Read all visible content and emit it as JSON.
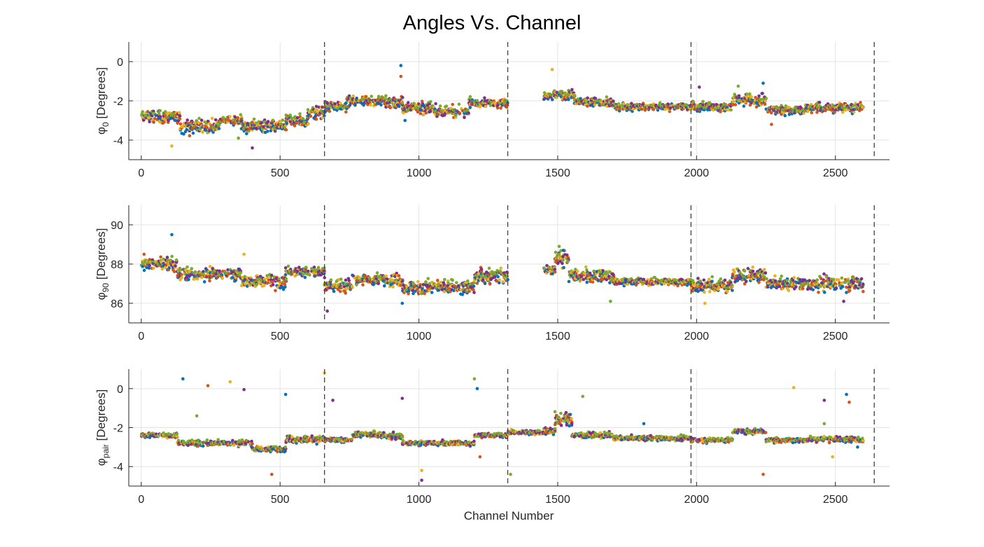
{
  "chart_data": {
    "type": "scatter",
    "title": "Angles Vs. Channel",
    "xlabel": "Channel Number",
    "xlim": [
      -45,
      2695
    ],
    "xticks": [
      0,
      500,
      1000,
      1500,
      2000,
      2500
    ],
    "xtick_labels": [
      "0",
      "500",
      "1000",
      "1500",
      "2000",
      "2500"
    ],
    "grid": true,
    "legend": "none",
    "series_colors": [
      "#0072BD",
      "#D95319",
      "#EDB120",
      "#7E2F8E",
      "#77AC30"
    ],
    "boundary_channels": [
      660,
      1320,
      1980,
      2640
    ],
    "boundary_style": "dashed",
    "gap_channels": [
      1330,
      1450
    ],
    "subplots": [
      {
        "ylabel": {
          "symbol": "φ",
          "subscript": "0",
          "units": "[Degrees]"
        },
        "ylim": [
          -5,
          1
        ],
        "yticks": [
          -4,
          -2,
          0
        ],
        "ytick_labels": [
          "-4",
          "-2",
          "0"
        ],
        "segments": [
          [
            0,
            140,
            -2.8,
            0.25
          ],
          [
            140,
            280,
            -3.3,
            0.3
          ],
          [
            280,
            360,
            -3.0,
            0.2
          ],
          [
            360,
            520,
            -3.3,
            0.25
          ],
          [
            520,
            600,
            -3.0,
            0.25
          ],
          [
            600,
            660,
            -2.6,
            0.3
          ],
          [
            660,
            740,
            -2.25,
            0.2
          ],
          [
            740,
            880,
            -2.0,
            0.2
          ],
          [
            880,
            940,
            -2.1,
            0.25
          ],
          [
            940,
            1060,
            -2.35,
            0.25
          ],
          [
            1060,
            1180,
            -2.55,
            0.25
          ],
          [
            1180,
            1320,
            -2.1,
            0.2
          ],
          [
            1450,
            1560,
            -1.7,
            0.2
          ],
          [
            1560,
            1700,
            -2.1,
            0.2
          ],
          [
            1700,
            1980,
            -2.3,
            0.15
          ],
          [
            1980,
            2130,
            -2.3,
            0.2
          ],
          [
            2130,
            2250,
            -1.95,
            0.25
          ],
          [
            2250,
            2400,
            -2.45,
            0.2
          ],
          [
            2400,
            2600,
            -2.35,
            0.2
          ]
        ],
        "outliers": [
          [
            935,
            -0.2
          ],
          [
            935,
            -0.75
          ],
          [
            1480,
            -0.4
          ],
          [
            2010,
            -1.3
          ],
          [
            2150,
            -1.25
          ],
          [
            2240,
            -1.1
          ],
          [
            2270,
            -3.2
          ],
          [
            110,
            -4.3
          ],
          [
            400,
            -4.4
          ],
          [
            350,
            -3.9
          ],
          [
            950,
            -3.0
          ]
        ]
      },
      {
        "ylabel": {
          "symbol": "φ",
          "subscript": "90",
          "units": "[Degrees]"
        },
        "ylim": [
          85,
          91
        ],
        "yticks": [
          86,
          88,
          90
        ],
        "ytick_labels": [
          "86",
          "88",
          "90"
        ],
        "segments": [
          [
            0,
            130,
            88.0,
            0.25
          ],
          [
            130,
            360,
            87.5,
            0.25
          ],
          [
            360,
            520,
            87.1,
            0.3
          ],
          [
            520,
            660,
            87.6,
            0.2
          ],
          [
            660,
            760,
            86.9,
            0.3
          ],
          [
            760,
            880,
            87.2,
            0.25
          ],
          [
            880,
            940,
            87.2,
            0.3
          ],
          [
            940,
            1200,
            86.8,
            0.3
          ],
          [
            1200,
            1320,
            87.4,
            0.3
          ],
          [
            1450,
            1490,
            87.7,
            0.2
          ],
          [
            1490,
            1540,
            88.3,
            0.35
          ],
          [
            1540,
            1700,
            87.4,
            0.3
          ],
          [
            1700,
            1980,
            87.1,
            0.15
          ],
          [
            1980,
            2130,
            86.9,
            0.3
          ],
          [
            2130,
            2250,
            87.4,
            0.3
          ],
          [
            2250,
            2400,
            87.0,
            0.25
          ],
          [
            2400,
            2600,
            87.0,
            0.3
          ]
        ],
        "outliers": [
          [
            110,
            89.5
          ],
          [
            10,
            88.5
          ],
          [
            370,
            88.5
          ],
          [
            670,
            85.6
          ],
          [
            1505,
            88.9
          ],
          [
            1520,
            88.7
          ],
          [
            2600,
            86.6
          ],
          [
            2030,
            86.0
          ],
          [
            2530,
            86.1
          ],
          [
            1690,
            86.1
          ],
          [
            940,
            86.0
          ]
        ]
      },
      {
        "ylabel": {
          "symbol": "φ",
          "subscript": "pair",
          "units": "[Degrees]"
        },
        "ylim": [
          -5,
          1
        ],
        "yticks": [
          -4,
          -2,
          0
        ],
        "ytick_labels": [
          "-4",
          "-2",
          "0"
        ],
        "segments": [
          [
            0,
            130,
            -2.4,
            0.1
          ],
          [
            130,
            400,
            -2.8,
            0.12
          ],
          [
            400,
            520,
            -3.1,
            0.12
          ],
          [
            520,
            660,
            -2.6,
            0.15
          ],
          [
            660,
            760,
            -2.65,
            0.1
          ],
          [
            760,
            880,
            -2.35,
            0.12
          ],
          [
            880,
            940,
            -2.45,
            0.15
          ],
          [
            940,
            1200,
            -2.8,
            0.1
          ],
          [
            1200,
            1320,
            -2.4,
            0.1
          ],
          [
            1320,
            1450,
            -2.25,
            0.1
          ],
          [
            1450,
            1490,
            -2.15,
            0.15
          ],
          [
            1490,
            1550,
            -1.6,
            0.3
          ],
          [
            1550,
            1700,
            -2.4,
            0.12
          ],
          [
            1700,
            1980,
            -2.55,
            0.1
          ],
          [
            1980,
            2130,
            -2.65,
            0.1
          ],
          [
            2130,
            2250,
            -2.2,
            0.12
          ],
          [
            2250,
            2400,
            -2.65,
            0.1
          ],
          [
            2400,
            2600,
            -2.6,
            0.12
          ]
        ],
        "outliers": [
          [
            150,
            0.5
          ],
          [
            240,
            0.15
          ],
          [
            320,
            0.35
          ],
          [
            370,
            -0.05
          ],
          [
            200,
            -1.4
          ],
          [
            520,
            -0.3
          ],
          [
            470,
            -4.4
          ],
          [
            660,
            0.8
          ],
          [
            690,
            -0.6
          ],
          [
            1200,
            0.5
          ],
          [
            1210,
            0.0
          ],
          [
            1220,
            -3.5
          ],
          [
            1010,
            -4.2
          ],
          [
            1010,
            -4.7
          ],
          [
            1590,
            -0.4
          ],
          [
            1810,
            -1.8
          ],
          [
            2240,
            -4.4
          ],
          [
            2350,
            0.05
          ],
          [
            2460,
            -0.6
          ],
          [
            2460,
            -1.8
          ],
          [
            2540,
            -0.3
          ],
          [
            2550,
            -0.7
          ],
          [
            2490,
            -3.5
          ],
          [
            940,
            -0.5
          ],
          [
            1330,
            -4.4
          ],
          [
            2580,
            -3.0
          ]
        ]
      }
    ]
  }
}
